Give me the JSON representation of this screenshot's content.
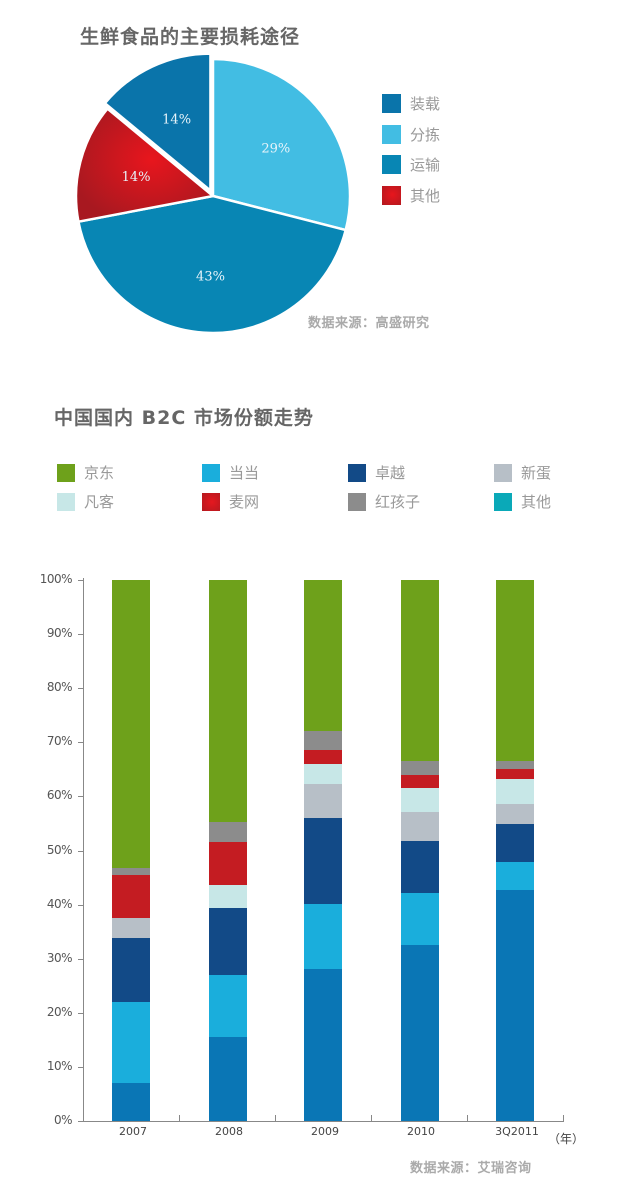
{
  "pie": {
    "title": "生鲜食品的主要损耗途径",
    "source": "数据来源：高盛研究",
    "legend": [
      {
        "label": "装载",
        "color": "#0a74aa"
      },
      {
        "label": "分拣",
        "color": "#42bde3"
      },
      {
        "label": "运输",
        "color": "#0886b4"
      },
      {
        "label": "其他",
        "color": "#d8141d"
      }
    ]
  },
  "bar": {
    "title": "中国国内 B2C 市场份额走势",
    "source": "数据来源：艾瑞咨询",
    "x_unit": "（年）",
    "legend": [
      {
        "label": "京东",
        "color": "#6ea11b"
      },
      {
        "label": "当当",
        "color": "#1aaedc"
      },
      {
        "label": "卓越",
        "color": "#124a87"
      },
      {
        "label": "新蛋",
        "color": "#b7bfc7"
      },
      {
        "label": "凡客",
        "color": "#c7e7e7"
      },
      {
        "label": "麦网",
        "color": "#c41c22"
      },
      {
        "label": "红孩子",
        "color": "#8c8c8c"
      },
      {
        "label": "其他",
        "color": "#0aa9b8"
      }
    ],
    "y_ticks": [
      "0%",
      "10%",
      "20%",
      "30%",
      "40%",
      "50%",
      "60%",
      "70%",
      "80%",
      "90%",
      "100%"
    ],
    "x_ticks": [
      "2007",
      "2008",
      "2009",
      "2010",
      "3Q2011"
    ]
  },
  "chart_data": [
    {
      "type": "pie",
      "title": "生鲜食品的主要损耗途径",
      "categories": [
        "分拣",
        "运输",
        "其他",
        "装载"
      ],
      "values": [
        29,
        43,
        14,
        14
      ],
      "labels": [
        "29%",
        "43%",
        "14%",
        "14%"
      ],
      "colors": [
        "#42bde3",
        "#0886b4",
        "#d8141d",
        "#0a74aa"
      ],
      "legend": [
        "装载",
        "分拣",
        "运输",
        "其他"
      ],
      "legend_position": "right",
      "exploded": [
        "装载"
      ],
      "source": "数据来源：高盛研究"
    },
    {
      "type": "bar",
      "stacked": true,
      "title": "中国国内 B2C 市场份额走势",
      "xlabel": "（年）",
      "ylabel": "",
      "ylim": [
        0,
        100
      ],
      "categories": [
        "2007",
        "2008",
        "2009",
        "2010",
        "3Q2011"
      ],
      "series": [
        {
          "name": "其他",
          "color": "#0a76b5",
          "values": [
            7.0,
            15.5,
            28.1,
            32.5,
            42.7
          ]
        },
        {
          "name": "当当",
          "color": "#1aaedc",
          "values": [
            15.0,
            11.5,
            12.0,
            9.6,
            5.2
          ]
        },
        {
          "name": "卓越",
          "color": "#124a87",
          "values": [
            11.8,
            12.4,
            15.9,
            9.6,
            7.0
          ]
        },
        {
          "name": "新蛋",
          "color": "#b7bfc7",
          "values": [
            3.7,
            0,
            6.3,
            5.5,
            3.7
          ]
        },
        {
          "name": "凡客",
          "color": "#c7e7e7",
          "values": [
            0,
            4.3,
            3.7,
            4.4,
            4.6
          ]
        },
        {
          "name": "麦网",
          "color": "#c41c22",
          "values": [
            8.0,
            7.8,
            2.6,
            2.4,
            1.8
          ]
        },
        {
          "name": "红孩子",
          "color": "#8c8c8c",
          "values": [
            1.3,
            3.7,
            3.5,
            2.6,
            1.5
          ]
        },
        {
          "name": "京东",
          "color": "#6ea11b",
          "values": [
            53.2,
            44.8,
            27.9,
            33.4,
            33.5
          ]
        }
      ],
      "legend": [
        "京东",
        "当当",
        "卓越",
        "新蛋",
        "凡客",
        "麦网",
        "红孩子",
        "其他"
      ],
      "legend_position": "top",
      "grid": false,
      "source": "数据来源：艾瑞咨询"
    }
  ]
}
